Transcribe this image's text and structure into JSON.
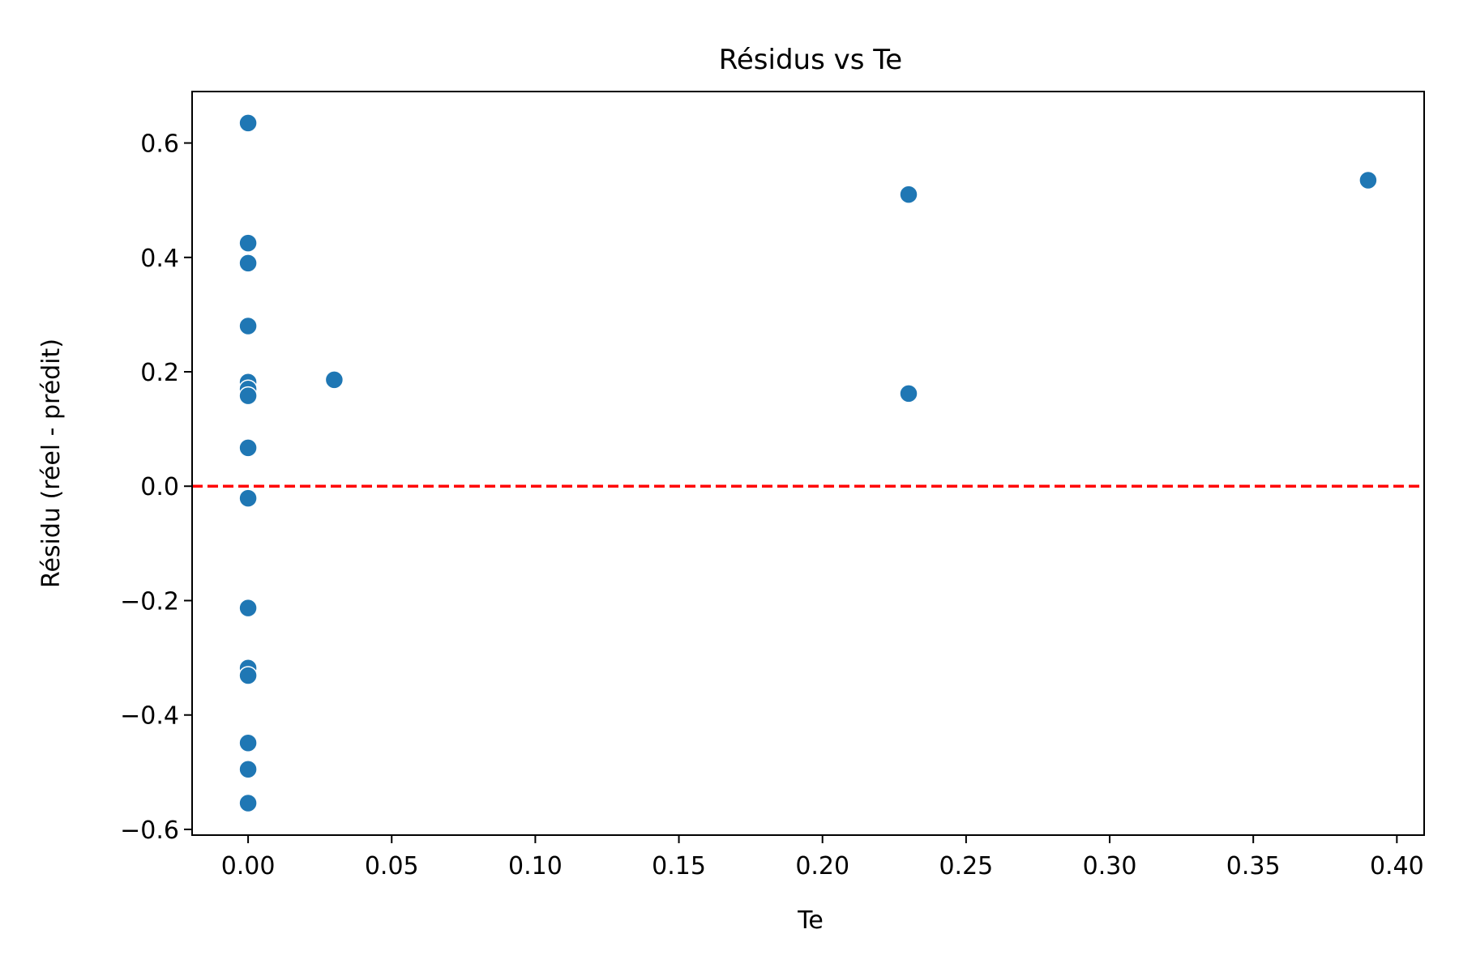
{
  "chart_data": {
    "type": "scatter",
    "title": "Résidus vs Te",
    "xlabel": "Te",
    "ylabel": "Résidu (réel - prédit)",
    "xlim": [
      -0.0195,
      0.4095
    ],
    "ylim": [
      -0.61,
      0.69
    ],
    "xticks": [
      0.0,
      0.05,
      0.1,
      0.15,
      0.2,
      0.25,
      0.3,
      0.35,
      0.4
    ],
    "xtick_labels": [
      "0.00",
      "0.05",
      "0.10",
      "0.15",
      "0.20",
      "0.25",
      "0.30",
      "0.35",
      "0.40"
    ],
    "yticks": [
      0.6,
      0.4,
      0.2,
      0.0,
      -0.2,
      -0.4,
      -0.6
    ],
    "ytick_labels": [
      "0.6",
      "0.4",
      "0.2",
      "0.0",
      "−0.2",
      "−0.4",
      "−0.6"
    ],
    "grid": false,
    "point_color": "#1f77b4",
    "reference_line": {
      "y": 0.0,
      "color": "#ff0000",
      "style": "dashed"
    },
    "points": [
      {
        "x": 0.0,
        "y": 0.635
      },
      {
        "x": 0.0,
        "y": 0.425
      },
      {
        "x": 0.0,
        "y": 0.39
      },
      {
        "x": 0.0,
        "y": 0.28
      },
      {
        "x": 0.0,
        "y": 0.182
      },
      {
        "x": 0.0,
        "y": 0.17
      },
      {
        "x": 0.0,
        "y": 0.158
      },
      {
        "x": 0.0,
        "y": 0.067
      },
      {
        "x": 0.0,
        "y": -0.021
      },
      {
        "x": 0.0,
        "y": -0.213
      },
      {
        "x": 0.0,
        "y": -0.318
      },
      {
        "x": 0.0,
        "y": -0.331
      },
      {
        "x": 0.0,
        "y": -0.449
      },
      {
        "x": 0.0,
        "y": -0.495
      },
      {
        "x": 0.0,
        "y": -0.554
      },
      {
        "x": 0.03,
        "y": 0.186
      },
      {
        "x": 0.23,
        "y": 0.51
      },
      {
        "x": 0.23,
        "y": 0.162
      },
      {
        "x": 0.39,
        "y": 0.535
      }
    ]
  }
}
